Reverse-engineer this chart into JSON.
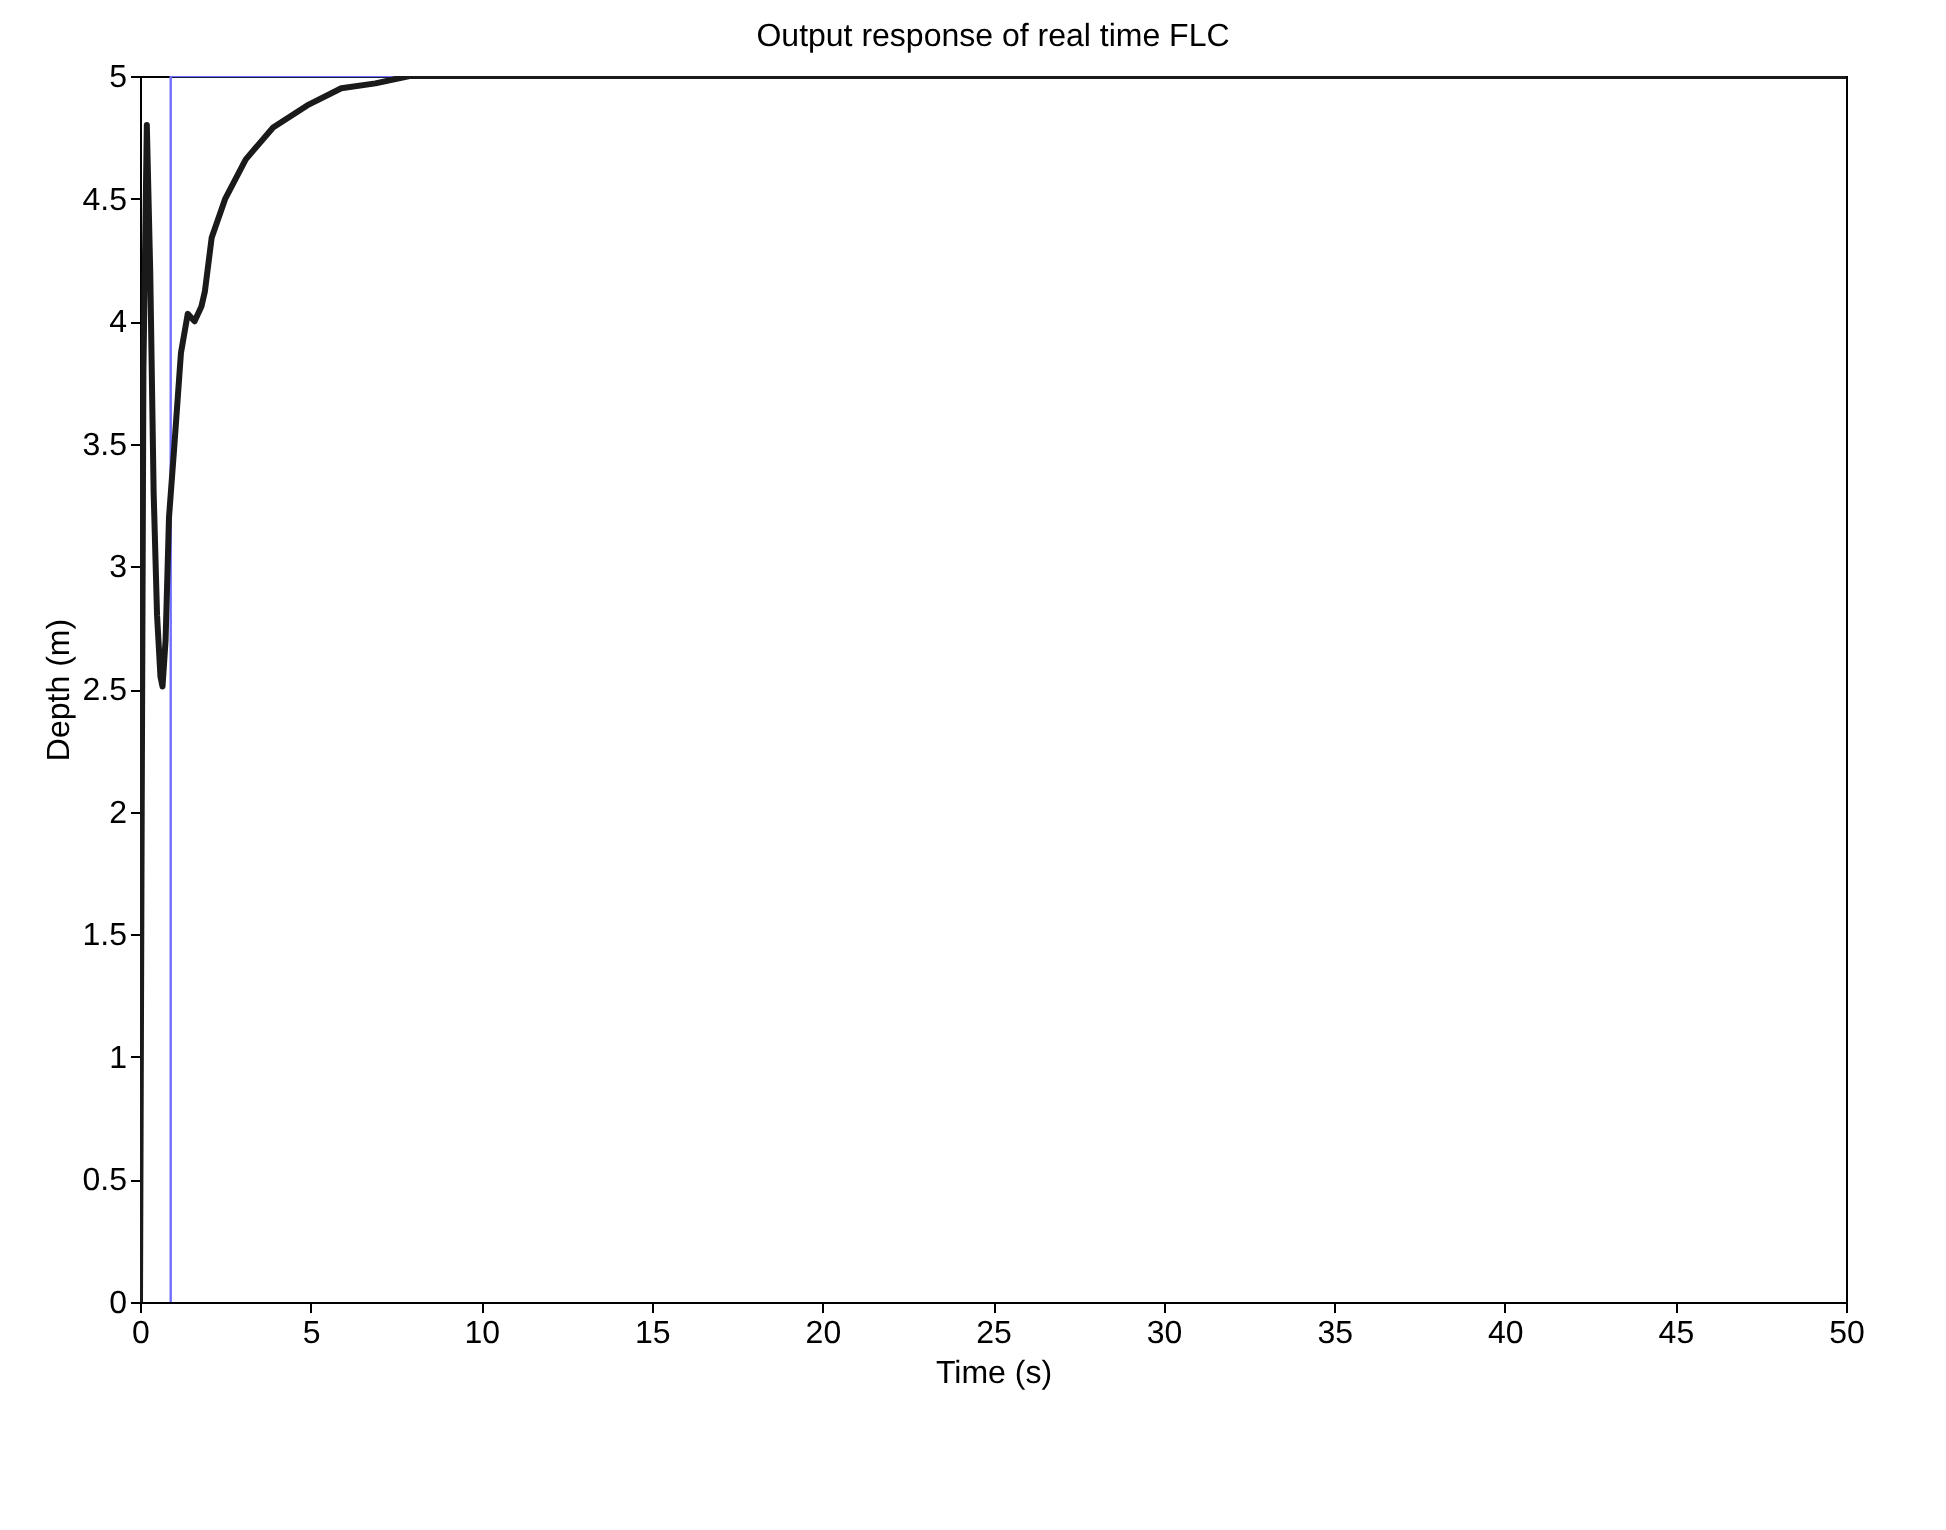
{
  "chart_data": {
    "type": "line",
    "title": "Output response of real time FLC",
    "xlabel": "Time (s)",
    "ylabel": "Depth (m)",
    "xlim": [
      0,
      50
    ],
    "ylim": [
      0,
      5
    ],
    "xticks": [
      0,
      5,
      10,
      15,
      20,
      25,
      30,
      35,
      40,
      45,
      50
    ],
    "yticks": [
      0,
      0.5,
      1,
      1.5,
      2,
      2.5,
      3,
      3.5,
      4,
      4.5,
      5
    ],
    "marker": "none",
    "line_style": "solid",
    "series": [
      {
        "color": "#7070ff",
        "x": [
          0.9,
          0.9,
          7.5
        ],
        "values": [
          0,
          5,
          5
        ]
      },
      {
        "color": "#1a1a1a",
        "x": [
          0,
          0.05,
          0.1,
          0.2,
          0.3,
          0.4,
          0.5,
          0.6,
          0.66,
          0.75,
          0.85,
          1.0,
          1.2,
          1.4,
          1.6,
          1.8,
          1.9,
          2.1,
          2.5,
          3.1,
          3.9,
          4.9,
          5.9,
          6.9,
          7.9,
          50
        ],
        "values": [
          0,
          2.0,
          3.8,
          4.8,
          4.2,
          3.3,
          2.8,
          2.55,
          2.51,
          2.7,
          3.2,
          3.48,
          3.87,
          4.03,
          4.0,
          4.06,
          4.12,
          4.34,
          4.5,
          4.66,
          4.79,
          4.88,
          4.95,
          4.97,
          5,
          5
        ]
      }
    ]
  }
}
